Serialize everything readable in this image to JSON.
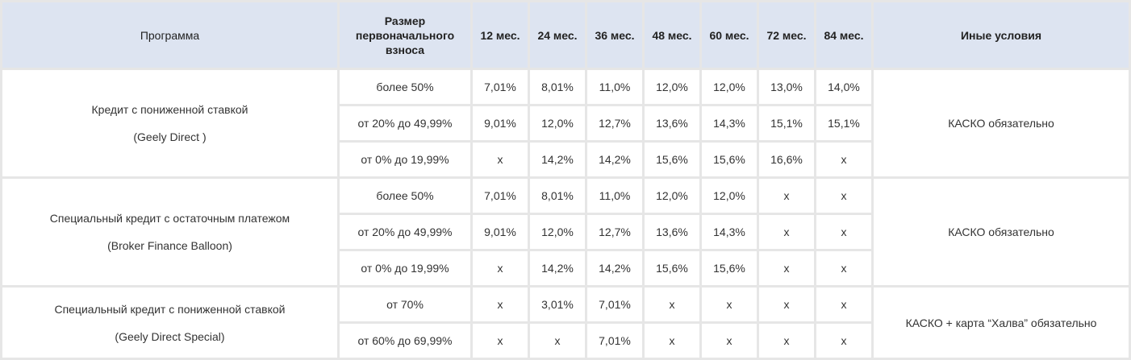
{
  "table": {
    "headers": {
      "program": "Программа",
      "down_payment": "Размер первоначального взноса",
      "months": [
        "12 мес.",
        "24 мес.",
        "36 мес.",
        "48 мес.",
        "60 мес.",
        "72 мес.",
        "84 мес."
      ],
      "other_conditions": "Иные условия"
    },
    "groups": [
      {
        "program_name": "Кредит с пониженной ставкой",
        "program_sub": "(Geely Direct )",
        "conditions": "КАСКО обязательно",
        "rows": [
          {
            "down_payment": "более 50%",
            "rates": [
              "7,01%",
              "8,01%",
              "11,0%",
              "12,0%",
              "12,0%",
              "13,0%",
              "14,0%"
            ]
          },
          {
            "down_payment": "от 20% до 49,99%",
            "rates": [
              "9,01%",
              "12,0%",
              "12,7%",
              "13,6%",
              "14,3%",
              "15,1%",
              "15,1%"
            ]
          },
          {
            "down_payment": "от 0% до 19,99%",
            "rates": [
              "x",
              "14,2%",
              "14,2%",
              "15,6%",
              "15,6%",
              "16,6%",
              "x"
            ]
          }
        ]
      },
      {
        "program_name": "Специальный кредит с остаточным платежом",
        "program_sub": "(Broker Finance Balloon)",
        "conditions": "КАСКО обязательно",
        "rows": [
          {
            "down_payment": "более 50%",
            "rates": [
              "7,01%",
              "8,01%",
              "11,0%",
              "12,0%",
              "12,0%",
              "x",
              "x"
            ]
          },
          {
            "down_payment": "от 20% до 49,99%",
            "rates": [
              "9,01%",
              "12,0%",
              "12,7%",
              "13,6%",
              "14,3%",
              "x",
              "x"
            ]
          },
          {
            "down_payment": "от 0% до 19,99%",
            "rates": [
              "x",
              "14,2%",
              "14,2%",
              "15,6%",
              "15,6%",
              "x",
              "x"
            ]
          }
        ]
      },
      {
        "program_name": "Специальный кредит с пониженной ставкой",
        "program_sub": "(Geely Direct Special)",
        "conditions": "КАСКО + карта “Халва” обязательно",
        "rows": [
          {
            "down_payment": "от 70%",
            "rates": [
              "x",
              "3,01%",
              "7,01%",
              "x",
              "x",
              "x",
              "x"
            ]
          },
          {
            "down_payment": "от 60% до 69,99%",
            "rates": [
              "x",
              "x",
              "7,01%",
              "x",
              "x",
              "x",
              "x"
            ]
          }
        ]
      }
    ]
  },
  "colors": {
    "header_bg": "#dde4f1",
    "grid": "#e6e6e6",
    "cell_bg": "#ffffff"
  }
}
